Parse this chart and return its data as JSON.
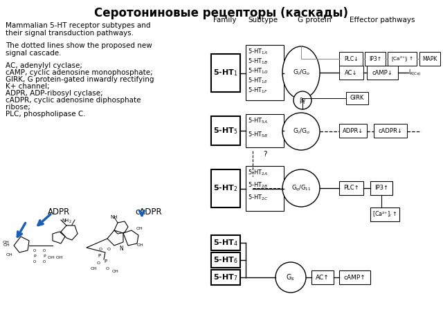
{
  "title": "Серотониновые рецепторы (каскады)",
  "background_color": "#ffffff",
  "left_text_line1": "Mammalian 5-HT receptor subtypes and",
  "left_text_line2": "their signal transduction pathways.",
  "left_text_line3": "The dotted lines show the proposed new",
  "left_text_line4": "signal cascade.",
  "left_text_abbr": "AC, adenylyl cyclase;\ncAMP, cyclic adenosine monophosphate;\nGIRK, G protein-gated inwardly rectifying\nK+ channel;\nADPR, ADP-ribosyl cyclase;\ncADPR, cyclic adenosine diphosphate\nribose;\nPLC, phospholipase C."
}
